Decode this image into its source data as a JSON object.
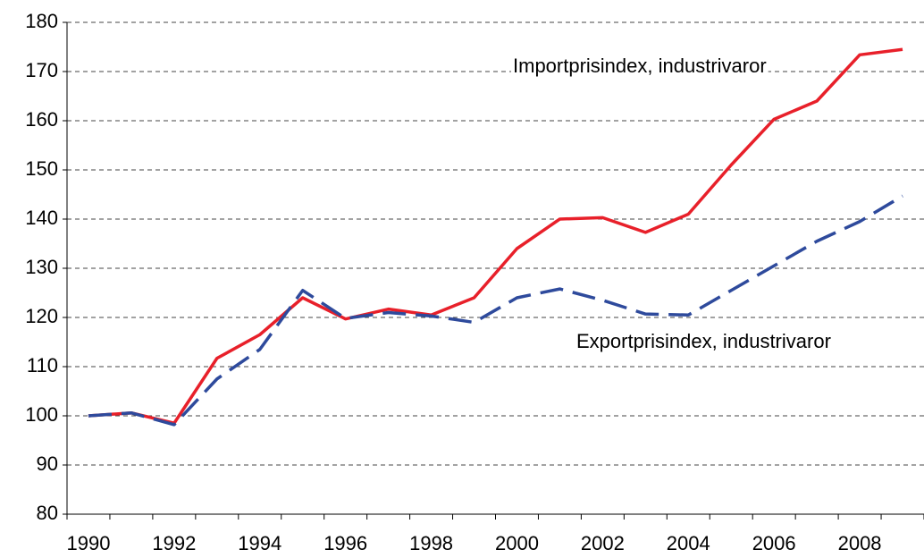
{
  "chart_data": {
    "type": "line",
    "categories": [
      "1990",
      null,
      "1992",
      null,
      "1994",
      null,
      "1996",
      null,
      "1998",
      null,
      "2000",
      null,
      "2002",
      null,
      "2004",
      null,
      "2006",
      null,
      "2008",
      null
    ],
    "series": [
      {
        "name": "Importprisindex, industrivaror",
        "color": "#e8202a",
        "dash": "solid",
        "values": [
          100,
          100.6,
          98.5,
          111.7,
          116.5,
          124,
          119.7,
          121.7,
          120.5,
          124,
          134,
          140,
          140.3,
          137.3,
          141,
          151,
          160.3,
          164,
          173.4,
          174.5
        ]
      },
      {
        "name": "Exportprisindex, industrivaror",
        "color": "#2e4a9c",
        "dash": "dashed",
        "values": [
          100,
          100.6,
          98.2,
          107.5,
          113.5,
          125.5,
          119.8,
          121,
          120.3,
          119,
          124,
          125.8,
          123.5,
          120.7,
          120.5,
          125.5,
          130.5,
          135.5,
          139.5,
          144.7
        ]
      }
    ],
    "ylim": [
      80,
      180
    ],
    "yticks": [
      80,
      90,
      100,
      110,
      120,
      130,
      140,
      150,
      160,
      170,
      180
    ],
    "grid": true
  }
}
